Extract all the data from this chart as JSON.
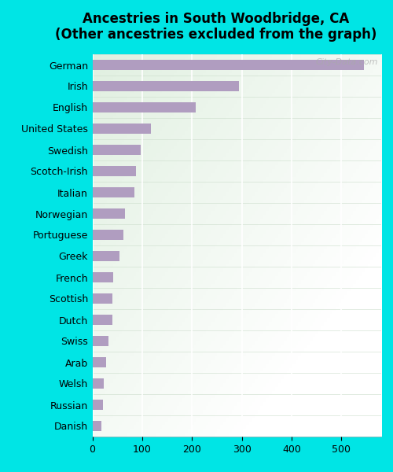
{
  "title_line1": "Ancestries in South Woodbridge, CA",
  "title_line2": "(Other ancestries excluded from the graph)",
  "categories": [
    "German",
    "Irish",
    "English",
    "United States",
    "Swedish",
    "Scotch-Irish",
    "Italian",
    "Norwegian",
    "Portuguese",
    "Greek",
    "French",
    "Scottish",
    "Dutch",
    "Swiss",
    "Arab",
    "Welsh",
    "Russian",
    "Danish"
  ],
  "values": [
    545,
    295,
    208,
    118,
    97,
    88,
    85,
    65,
    63,
    55,
    42,
    40,
    40,
    33,
    27,
    23,
    22,
    18
  ],
  "bar_color": "#b09dc0",
  "background_color": "#00e5e5",
  "watermark": "City-Data.com",
  "title_fontsize": 12,
  "label_fontsize": 9,
  "tick_fontsize": 9,
  "xlim": [
    0,
    580
  ],
  "xticks": [
    0,
    100,
    200,
    300,
    400,
    500
  ]
}
